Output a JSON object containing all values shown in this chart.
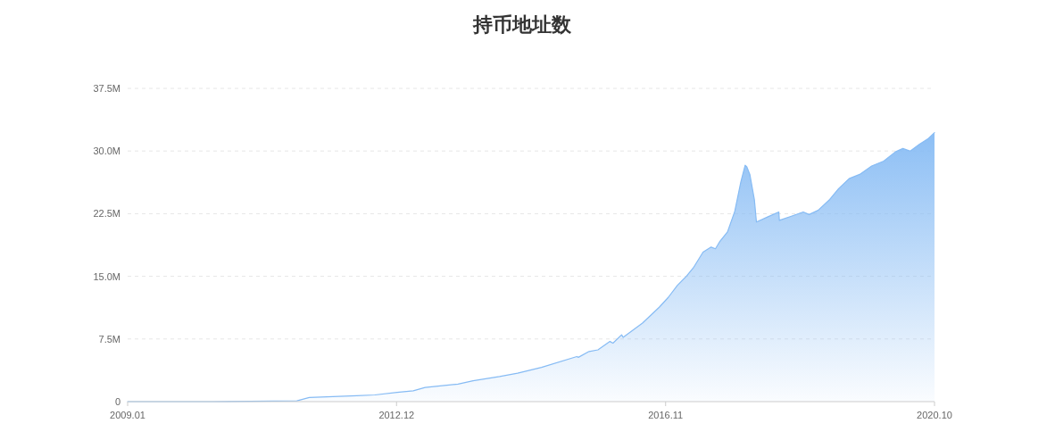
{
  "chart_data": {
    "type": "area",
    "title": "持币地址数",
    "x": [
      "2009-01-01",
      "2010-04-01",
      "2011-06-20",
      "2011-08-25",
      "2012-05-03",
      "2012-08-07",
      "2012-12-04",
      "2013-02-28",
      "2013-05-02",
      "2013-10-24",
      "2014-01-12",
      "2014-06-02",
      "2014-09-06",
      "2015-01-11",
      "2015-07-18",
      "2015-07-26",
      "2015-09-21",
      "2015-11-07",
      "2016-01-10",
      "2016-01-26",
      "2016-03-12",
      "2016-03-20",
      "2016-07-01",
      "2016-09-28",
      "2016-11-16",
      "2017-01-02",
      "2017-02-19",
      "2017-03-28",
      "2017-05-19",
      "2017-07-01",
      "2017-07-24",
      "2017-08-17",
      "2017-09-26",
      "2017-11-04",
      "2017-12-06",
      "2017-12-29",
      "2018-01-07",
      "2018-01-23",
      "2018-02-16",
      "2018-02-27",
      "2018-04-27",
      "2018-06-26",
      "2018-06-29",
      "2018-09-01",
      "2018-11-03",
      "2018-12-04",
      "2019-01-21",
      "2019-03-24",
      "2019-05-10",
      "2019-07-05",
      "2019-08-30",
      "2019-11-02",
      "2020-01-05",
      "2020-03-07",
      "2020-04-16",
      "2020-05-25",
      "2020-07-12",
      "2020-08-29",
      "2020-10-01"
    ],
    "values": [
      0,
      0,
      0.1,
      0.5,
      0.7,
      0.8,
      1.1,
      1.3,
      1.7,
      2.1,
      2.5,
      3.0,
      3.4,
      4.1,
      5.4,
      5.3,
      6.0,
      6.2,
      7.2,
      7.0,
      8.0,
      7.7,
      9.4,
      11.3,
      12.5,
      13.9,
      15.0,
      16.0,
      17.9,
      18.5,
      18.3,
      19.2,
      20.3,
      22.8,
      26.3,
      28.3,
      28.1,
      27.2,
      24.2,
      21.5,
      22.1,
      22.7,
      21.7,
      22.2,
      22.7,
      22.4,
      22.9,
      24.2,
      25.5,
      26.7,
      27.2,
      28.2,
      28.8,
      29.9,
      30.3,
      30.0,
      30.8,
      31.5,
      32.2
    ],
    "color": "#86bbf4",
    "xlim": [
      "2009-01",
      "2020-10"
    ],
    "xticks": [
      {
        "value": "2009-01",
        "label": "2009.01"
      },
      {
        "value": "2012-12",
        "label": "2012.12"
      },
      {
        "value": "2016-11",
        "label": "2016.11"
      },
      {
        "value": "2020-10",
        "label": "2020.10"
      }
    ],
    "ylim": [
      0,
      37.5
    ],
    "yticks": [
      0,
      {
        "value": 7.5,
        "label": "7.5M"
      },
      {
        "value": 15,
        "label": "15.0M"
      },
      {
        "value": 22.5,
        "label": "22.5M"
      },
      {
        "value": 30,
        "label": "30.0M"
      },
      {
        "value": 37.5,
        "label": "37.5M"
      }
    ],
    "grid": "y"
  }
}
